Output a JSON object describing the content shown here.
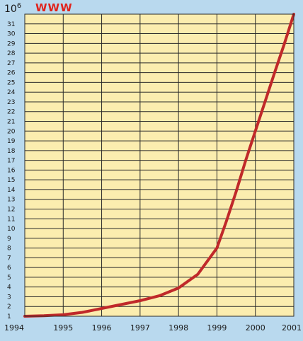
{
  "chart_data": {
    "type": "line",
    "title": "WWW",
    "unit_base": "10",
    "unit_exponent": "6",
    "xlabel": "",
    "ylabel": "",
    "x_ticks": [
      "1994",
      "1995",
      "1996",
      "1997",
      "1998",
      "1999",
      "2000",
      "2001"
    ],
    "xlim": [
      1994,
      2001
    ],
    "y_ticks": [
      "1",
      "2",
      "3",
      "4",
      "5",
      "6",
      "7",
      "8",
      "9",
      "10",
      "11",
      "12",
      "13",
      "14",
      "15",
      "16",
      "17",
      "18",
      "19",
      "20",
      "21",
      "22",
      "23",
      "24",
      "25",
      "26",
      "27",
      "28",
      "29",
      "30",
      "31"
    ],
    "ylim": [
      1,
      32
    ],
    "grid": true,
    "colors": {
      "background": "#b9d9ee",
      "plot_area": "#fbedaf",
      "grid": "#2a2a2a",
      "line": "#c0292a"
    },
    "series": [
      {
        "x": [
          1994,
          1994.5,
          1995,
          1995.5,
          1996,
          1996.5,
          1997,
          1997.5,
          1998,
          1998.5,
          1999,
          1999.25,
          1999.5,
          1999.75,
          2000,
          2000.25,
          2000.5,
          2000.75,
          2001
        ],
        "y": [
          1.0,
          1.05,
          1.15,
          1.4,
          1.8,
          2.2,
          2.6,
          3.1,
          3.9,
          5.3,
          8.0,
          10.8,
          13.8,
          17.0,
          20.0,
          23.0,
          26.0,
          28.9,
          32.0
        ]
      }
    ]
  }
}
